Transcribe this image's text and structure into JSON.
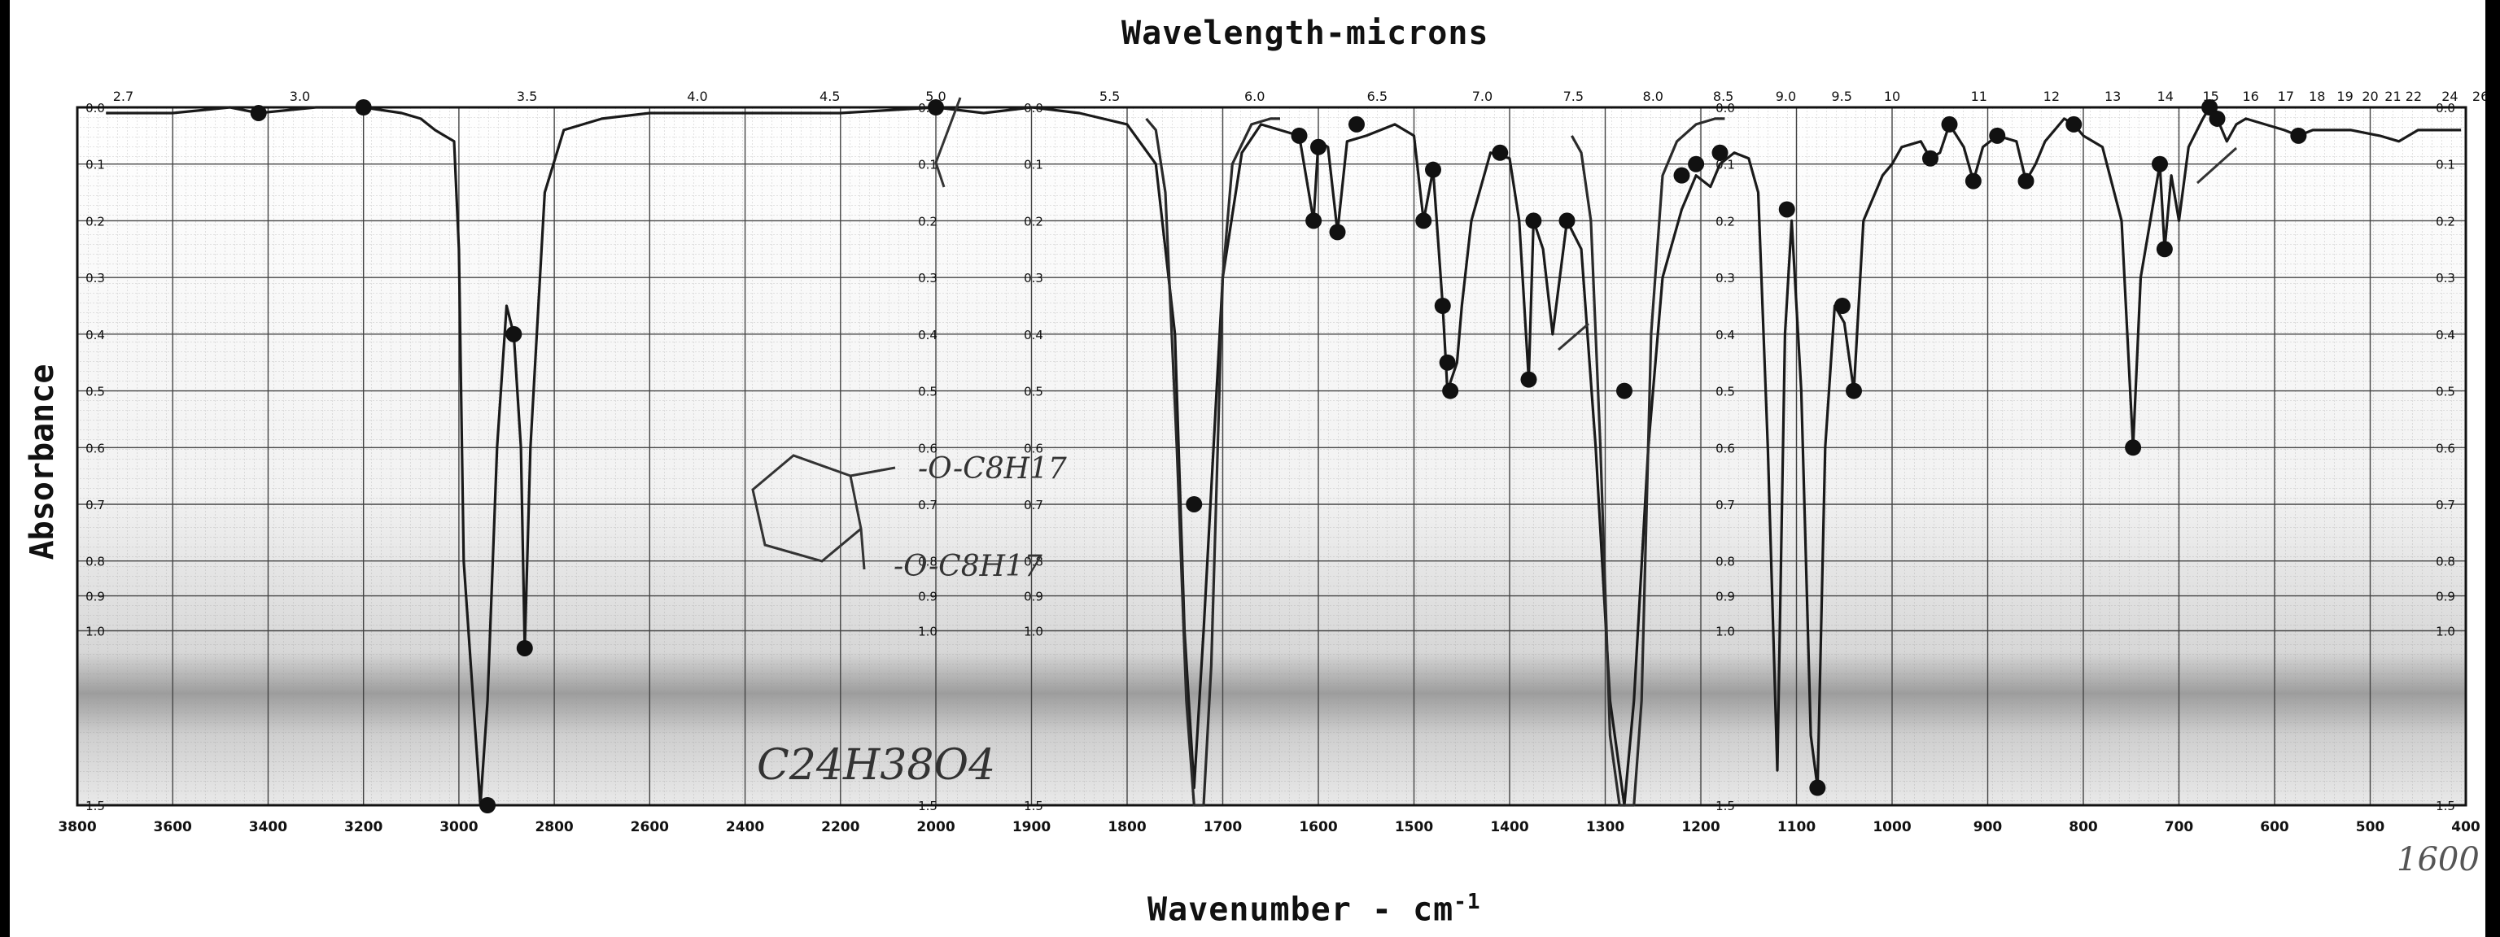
{
  "page": {
    "x_title": "Wavenumber - cm",
    "x_title_sup": "-1",
    "top_title": "Wavelength-microns",
    "y_title": "Absorbance",
    "formula": "C24H38O4",
    "struct_upper": "-O-C8H17",
    "struct_lower": "-O-C8H17",
    "side_note": "1600"
  },
  "chart_data": {
    "type": "line",
    "title": "",
    "xlabel": "Wavenumber - cm-1",
    "ylabel": "Absorbance",
    "top_axis_label": "Wavelength-microns",
    "x_reversed": true,
    "xlim": [
      3800,
      400
    ],
    "ylim": [
      0,
      1.5
    ],
    "y_scale": "absorbance (nonlinear)",
    "grid": true,
    "x_ticks": [
      3800,
      3600,
      3400,
      3200,
      3000,
      2800,
      2600,
      2400,
      2200,
      2000,
      1900,
      1800,
      1700,
      1600,
      1500,
      1400,
      1300,
      1200,
      1100,
      1000,
      900,
      800,
      700,
      600,
      500,
      400
    ],
    "x_tick_labels": [
      "3800",
      "3600",
      "3400",
      "3200",
      "3000",
      "2800",
      "2600",
      "2400",
      "2200",
      "2000",
      "1900",
      "1800",
      "1700",
      "1600",
      "1500",
      "1400",
      "1300",
      "1200",
      "1100",
      "1000",
      "900",
      "800",
      "700",
      "600",
      "500",
      "400"
    ],
    "top_ticks": [
      "2.7",
      "3.0",
      "3.5",
      "4.0",
      "4.5",
      "5.0",
      "5.5",
      "6.0",
      "6.5",
      "7.0",
      "7.5",
      "8.0",
      "8.5",
      "9.0",
      "9.5",
      "10",
      "11",
      "12",
      "13",
      "14",
      "15",
      "16",
      "17",
      "18",
      "19",
      "20",
      "21",
      "22",
      "24",
      "26"
    ],
    "y_ticks": [
      0.0,
      0.1,
      0.2,
      0.3,
      0.4,
      0.5,
      0.6,
      0.7,
      0.8,
      0.9,
      1.0,
      1.5
    ],
    "y_tick_labels": [
      "0.0",
      "0.1",
      "0.2",
      "0.3",
      "0.4",
      "0.5",
      "0.6",
      "0.7",
      "0.8",
      "0.9",
      "1.0",
      "1.5"
    ],
    "series": [
      {
        "color": "#1a1a1a",
        "points": [
          [
            3740,
            0.01
          ],
          [
            3600,
            0.01
          ],
          [
            3480,
            0.0
          ],
          [
            3420,
            0.01
          ],
          [
            3300,
            0.0
          ],
          [
            3200,
            0.0
          ],
          [
            3120,
            0.01
          ],
          [
            3080,
            0.02
          ],
          [
            3050,
            0.04
          ],
          [
            3030,
            0.05
          ],
          [
            3010,
            0.06
          ],
          [
            3000,
            0.25
          ],
          [
            2990,
            0.8
          ],
          [
            2970,
            1.2
          ],
          [
            2955,
            1.5
          ],
          [
            2940,
            1.2
          ],
          [
            2920,
            0.6
          ],
          [
            2900,
            0.35
          ],
          [
            2885,
            0.4
          ],
          [
            2870,
            0.6
          ],
          [
            2862,
            1.05
          ],
          [
            2850,
            0.6
          ],
          [
            2820,
            0.15
          ],
          [
            2780,
            0.04
          ],
          [
            2700,
            0.02
          ],
          [
            2600,
            0.01
          ],
          [
            2400,
            0.01
          ],
          [
            2200,
            0.01
          ],
          [
            2000,
            0.0
          ],
          [
            1950,
            0.01
          ],
          [
            1900,
            0.0
          ],
          [
            1850,
            0.01
          ],
          [
            1800,
            0.03
          ],
          [
            1770,
            0.1
          ],
          [
            1750,
            0.4
          ],
          [
            1740,
            1.0
          ],
          [
            1730,
            1.45
          ],
          [
            1720,
            1.0
          ],
          [
            1700,
            0.3
          ],
          [
            1680,
            0.08
          ],
          [
            1660,
            0.03
          ],
          [
            1640,
            0.04
          ],
          [
            1620,
            0.05
          ],
          [
            1605,
            0.2
          ],
          [
            1600,
            0.06
          ],
          [
            1590,
            0.07
          ],
          [
            1580,
            0.22
          ],
          [
            1570,
            0.06
          ],
          [
            1550,
            0.05
          ],
          [
            1520,
            0.03
          ],
          [
            1500,
            0.05
          ],
          [
            1490,
            0.2
          ],
          [
            1480,
            0.11
          ],
          [
            1470,
            0.35
          ],
          [
            1465,
            0.5
          ],
          [
            1455,
            0.45
          ],
          [
            1450,
            0.35
          ],
          [
            1440,
            0.2
          ],
          [
            1420,
            0.08
          ],
          [
            1400,
            0.09
          ],
          [
            1390,
            0.2
          ],
          [
            1380,
            0.48
          ],
          [
            1375,
            0.2
          ],
          [
            1365,
            0.25
          ],
          [
            1355,
            0.4
          ],
          [
            1340,
            0.2
          ],
          [
            1325,
            0.25
          ],
          [
            1310,
            0.6
          ],
          [
            1295,
            1.2
          ],
          [
            1280,
            1.5
          ],
          [
            1270,
            1.2
          ],
          [
            1255,
            0.6
          ],
          [
            1240,
            0.3
          ],
          [
            1220,
            0.18
          ],
          [
            1205,
            0.12
          ],
          [
            1190,
            0.14
          ],
          [
            1180,
            0.1
          ],
          [
            1165,
            0.08
          ],
          [
            1150,
            0.09
          ],
          [
            1140,
            0.15
          ],
          [
            1130,
            0.6
          ],
          [
            1120,
            1.4
          ],
          [
            1112,
            0.4
          ],
          [
            1105,
            0.2
          ],
          [
            1095,
            0.5
          ],
          [
            1085,
            1.3
          ],
          [
            1078,
            1.45
          ],
          [
            1070,
            0.6
          ],
          [
            1060,
            0.35
          ],
          [
            1050,
            0.38
          ],
          [
            1040,
            0.5
          ],
          [
            1030,
            0.2
          ],
          [
            1010,
            0.12
          ],
          [
            1000,
            0.1
          ],
          [
            990,
            0.07
          ],
          [
            970,
            0.06
          ],
          [
            960,
            0.09
          ],
          [
            950,
            0.08
          ],
          [
            940,
            0.03
          ],
          [
            925,
            0.07
          ],
          [
            915,
            0.13
          ],
          [
            905,
            0.07
          ],
          [
            890,
            0.05
          ],
          [
            870,
            0.06
          ],
          [
            860,
            0.13
          ],
          [
            850,
            0.1
          ],
          [
            840,
            0.06
          ],
          [
            820,
            0.02
          ],
          [
            810,
            0.03
          ],
          [
            800,
            0.05
          ],
          [
            780,
            0.07
          ],
          [
            760,
            0.2
          ],
          [
            748,
            0.6
          ],
          [
            740,
            0.3
          ],
          [
            730,
            0.2
          ],
          [
            720,
            0.1
          ],
          [
            715,
            0.25
          ],
          [
            708,
            0.12
          ],
          [
            700,
            0.2
          ],
          [
            690,
            0.07
          ],
          [
            675,
            0.02
          ],
          [
            668,
            0.0
          ],
          [
            660,
            0.02
          ],
          [
            650,
            0.06
          ],
          [
            640,
            0.03
          ],
          [
            630,
            0.02
          ],
          [
            610,
            0.03
          ],
          [
            590,
            0.04
          ],
          [
            575,
            0.05
          ],
          [
            560,
            0.04
          ],
          [
            520,
            0.04
          ],
          [
            490,
            0.05
          ],
          [
            470,
            0.06
          ],
          [
            450,
            0.04
          ],
          [
            420,
            0.04
          ],
          [
            405,
            0.04
          ]
        ]
      },
      {
        "color": "#2a2a2a",
        "points": [
          [
            1780,
            0.02
          ],
          [
            1770,
            0.04
          ],
          [
            1760,
            0.15
          ],
          [
            1748,
            0.6
          ],
          [
            1738,
            1.2
          ],
          [
            1730,
            1.5
          ],
          [
            1720,
            1.5
          ],
          [
            1712,
            1.1
          ],
          [
            1700,
            0.3
          ],
          [
            1690,
            0.1
          ],
          [
            1670,
            0.03
          ],
          [
            1650,
            0.02
          ],
          [
            1640,
            0.02
          ]
        ]
      },
      {
        "color": "#2a2a2a",
        "points": [
          [
            1335,
            0.05
          ],
          [
            1325,
            0.08
          ],
          [
            1315,
            0.2
          ],
          [
            1305,
            0.6
          ],
          [
            1295,
            1.3
          ],
          [
            1285,
            1.5
          ],
          [
            1270,
            1.5
          ],
          [
            1262,
            1.2
          ],
          [
            1252,
            0.4
          ],
          [
            1240,
            0.12
          ],
          [
            1225,
            0.06
          ],
          [
            1205,
            0.03
          ],
          [
            1185,
            0.02
          ],
          [
            1175,
            0.02
          ]
        ]
      }
    ],
    "marked_points": [
      [
        3420,
        0.01
      ],
      [
        3200,
        0.0
      ],
      [
        2940,
        1.5
      ],
      [
        2885,
        0.4
      ],
      [
        2862,
        1.05
      ],
      [
        2000,
        0.0
      ],
      [
        1730,
        0.7
      ],
      [
        1620,
        0.05
      ],
      [
        1600,
        0.07
      ],
      [
        1605,
        0.2
      ],
      [
        1580,
        0.22
      ],
      [
        1560,
        0.03
      ],
      [
        1490,
        0.2
      ],
      [
        1480,
        0.11
      ],
      [
        1470,
        0.35
      ],
      [
        1462,
        0.5
      ],
      [
        1465,
        0.45
      ],
      [
        1410,
        0.08
      ],
      [
        1380,
        0.48
      ],
      [
        1375,
        0.2
      ],
      [
        1340,
        0.2
      ],
      [
        1280,
        0.5
      ],
      [
        1220,
        0.12
      ],
      [
        1205,
        0.1
      ],
      [
        1180,
        0.08
      ],
      [
        1110,
        0.18
      ],
      [
        1078,
        1.45
      ],
      [
        1052,
        0.35
      ],
      [
        1040,
        0.5
      ],
      [
        960,
        0.09
      ],
      [
        940,
        0.03
      ],
      [
        915,
        0.13
      ],
      [
        890,
        0.05
      ],
      [
        860,
        0.13
      ],
      [
        810,
        0.03
      ],
      [
        748,
        0.6
      ],
      [
        720,
        0.1
      ],
      [
        715,
        0.25
      ],
      [
        668,
        0.0
      ],
      [
        660,
        0.02
      ],
      [
        575,
        0.05
      ]
    ]
  }
}
